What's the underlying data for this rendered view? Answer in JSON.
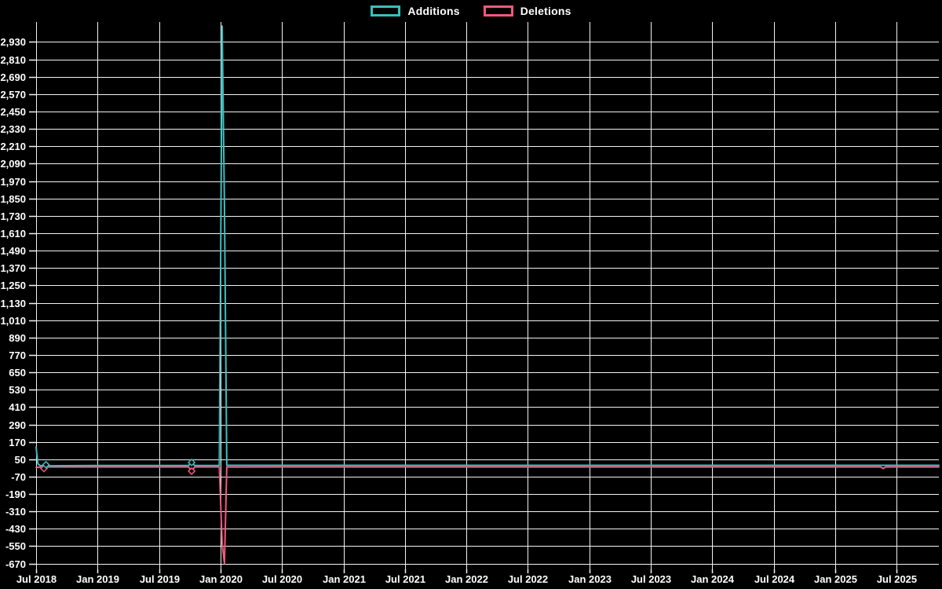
{
  "page": {
    "background_color": "#000000",
    "text_color": "#ffffff",
    "gridline_color": "#f2f2f2"
  },
  "legend": {
    "position": "top-center",
    "items": [
      {
        "label": "Additions",
        "color": "#3dbdbf"
      },
      {
        "label": "Deletions",
        "color": "#f0597c"
      }
    ]
  },
  "chart_data": {
    "type": "line",
    "title": "",
    "xlabel": "",
    "ylabel": "",
    "grid": true,
    "x_axis": {
      "tick_labels": [
        "Jul 2018",
        "Jan 2019",
        "Jul 2019",
        "Jan 2020",
        "Jul 2020",
        "Jan 2021",
        "Jul 2021",
        "Jan 2022",
        "Jul 2022",
        "Jan 2023",
        "Jul 2023",
        "Jan 2024",
        "Jul 2024",
        "Jan 2025",
        "Jul 2025"
      ],
      "tick_positions": [
        2018.5,
        2019.0,
        2019.5,
        2020.0,
        2020.5,
        2021.0,
        2021.5,
        2022.0,
        2022.5,
        2023.0,
        2023.5,
        2024.0,
        2024.5,
        2025.0,
        2025.5
      ],
      "xlim": [
        2018.5,
        2025.843
      ]
    },
    "y_axis": {
      "tick_min": -670,
      "tick_max": 2930,
      "tick_step": 120,
      "tick_values": [
        2930,
        2810,
        2690,
        2570,
        2450,
        2330,
        2210,
        2090,
        1970,
        1850,
        1730,
        1610,
        1490,
        1370,
        1250,
        1130,
        1010,
        890,
        770,
        650,
        530,
        410,
        290,
        170,
        50,
        -70,
        -190,
        -310,
        -430,
        -550,
        -670
      ],
      "tick_labels": [
        "2,930",
        "2,810",
        "2,690",
        "2,570",
        "2,450",
        "2,330",
        "2,210",
        "2,090",
        "1,970",
        "1,850",
        "1,730",
        "1,610",
        "1,490",
        "1,370",
        "1,250",
        "1,130",
        "1,010",
        "890",
        "770",
        "650",
        "530",
        "410",
        "290",
        "170",
        "50",
        "-70",
        "-190",
        "-310",
        "-430",
        "-550",
        "-670"
      ],
      "ylim": [
        -710,
        2976
      ]
    },
    "series": [
      {
        "name": "Additions",
        "color": "#3dbdbf",
        "peak_value": 3040,
        "secondary_peak_value": 1810,
        "points": [
          [
            2018.5,
            134
          ],
          [
            2018.515,
            18
          ],
          [
            2018.535,
            5
          ],
          [
            2018.56,
            6
          ],
          [
            2018.58,
            12
          ],
          [
            2018.6,
            5
          ],
          [
            2019.0,
            7
          ],
          [
            2019.5,
            7
          ],
          [
            2019.74,
            7
          ],
          [
            2019.765,
            28
          ],
          [
            2019.79,
            7
          ],
          [
            2019.99,
            7
          ],
          [
            2020.013,
            3040
          ],
          [
            2020.032,
            1810
          ],
          [
            2020.051,
            8
          ],
          [
            2020.5,
            8
          ],
          [
            2021.0,
            8
          ],
          [
            2022.0,
            8
          ],
          [
            2023.0,
            8
          ],
          [
            2024.0,
            8
          ],
          [
            2025.0,
            8
          ],
          [
            2025.843,
            8
          ]
        ],
        "markers": [
          [
            2018.58,
            12
          ],
          [
            2019.765,
            28
          ]
        ]
      },
      {
        "name": "Deletions",
        "color": "#f0597c",
        "min_value": -670,
        "secondary_min_value": -530,
        "points": [
          [
            2018.5,
            -6
          ],
          [
            2018.535,
            -4
          ],
          [
            2018.564,
            -14
          ],
          [
            2018.59,
            -3
          ],
          [
            2019.0,
            -3
          ],
          [
            2019.5,
            -3
          ],
          [
            2019.74,
            -3
          ],
          [
            2019.765,
            -32
          ],
          [
            2019.79,
            -3
          ],
          [
            2019.99,
            -3
          ],
          [
            2020.013,
            -530
          ],
          [
            2020.032,
            -670
          ],
          [
            2020.051,
            -4
          ],
          [
            2020.5,
            -3
          ],
          [
            2021.0,
            -3
          ],
          [
            2022.0,
            -3
          ],
          [
            2023.0,
            -3
          ],
          [
            2024.0,
            -3
          ],
          [
            2025.0,
            -3
          ],
          [
            2025.37,
            -3
          ],
          [
            2025.39,
            -14
          ],
          [
            2025.41,
            -3
          ],
          [
            2025.843,
            -3
          ]
        ],
        "markers": [
          [
            2018.564,
            -14
          ],
          [
            2019.765,
            -32
          ]
        ]
      }
    ]
  }
}
